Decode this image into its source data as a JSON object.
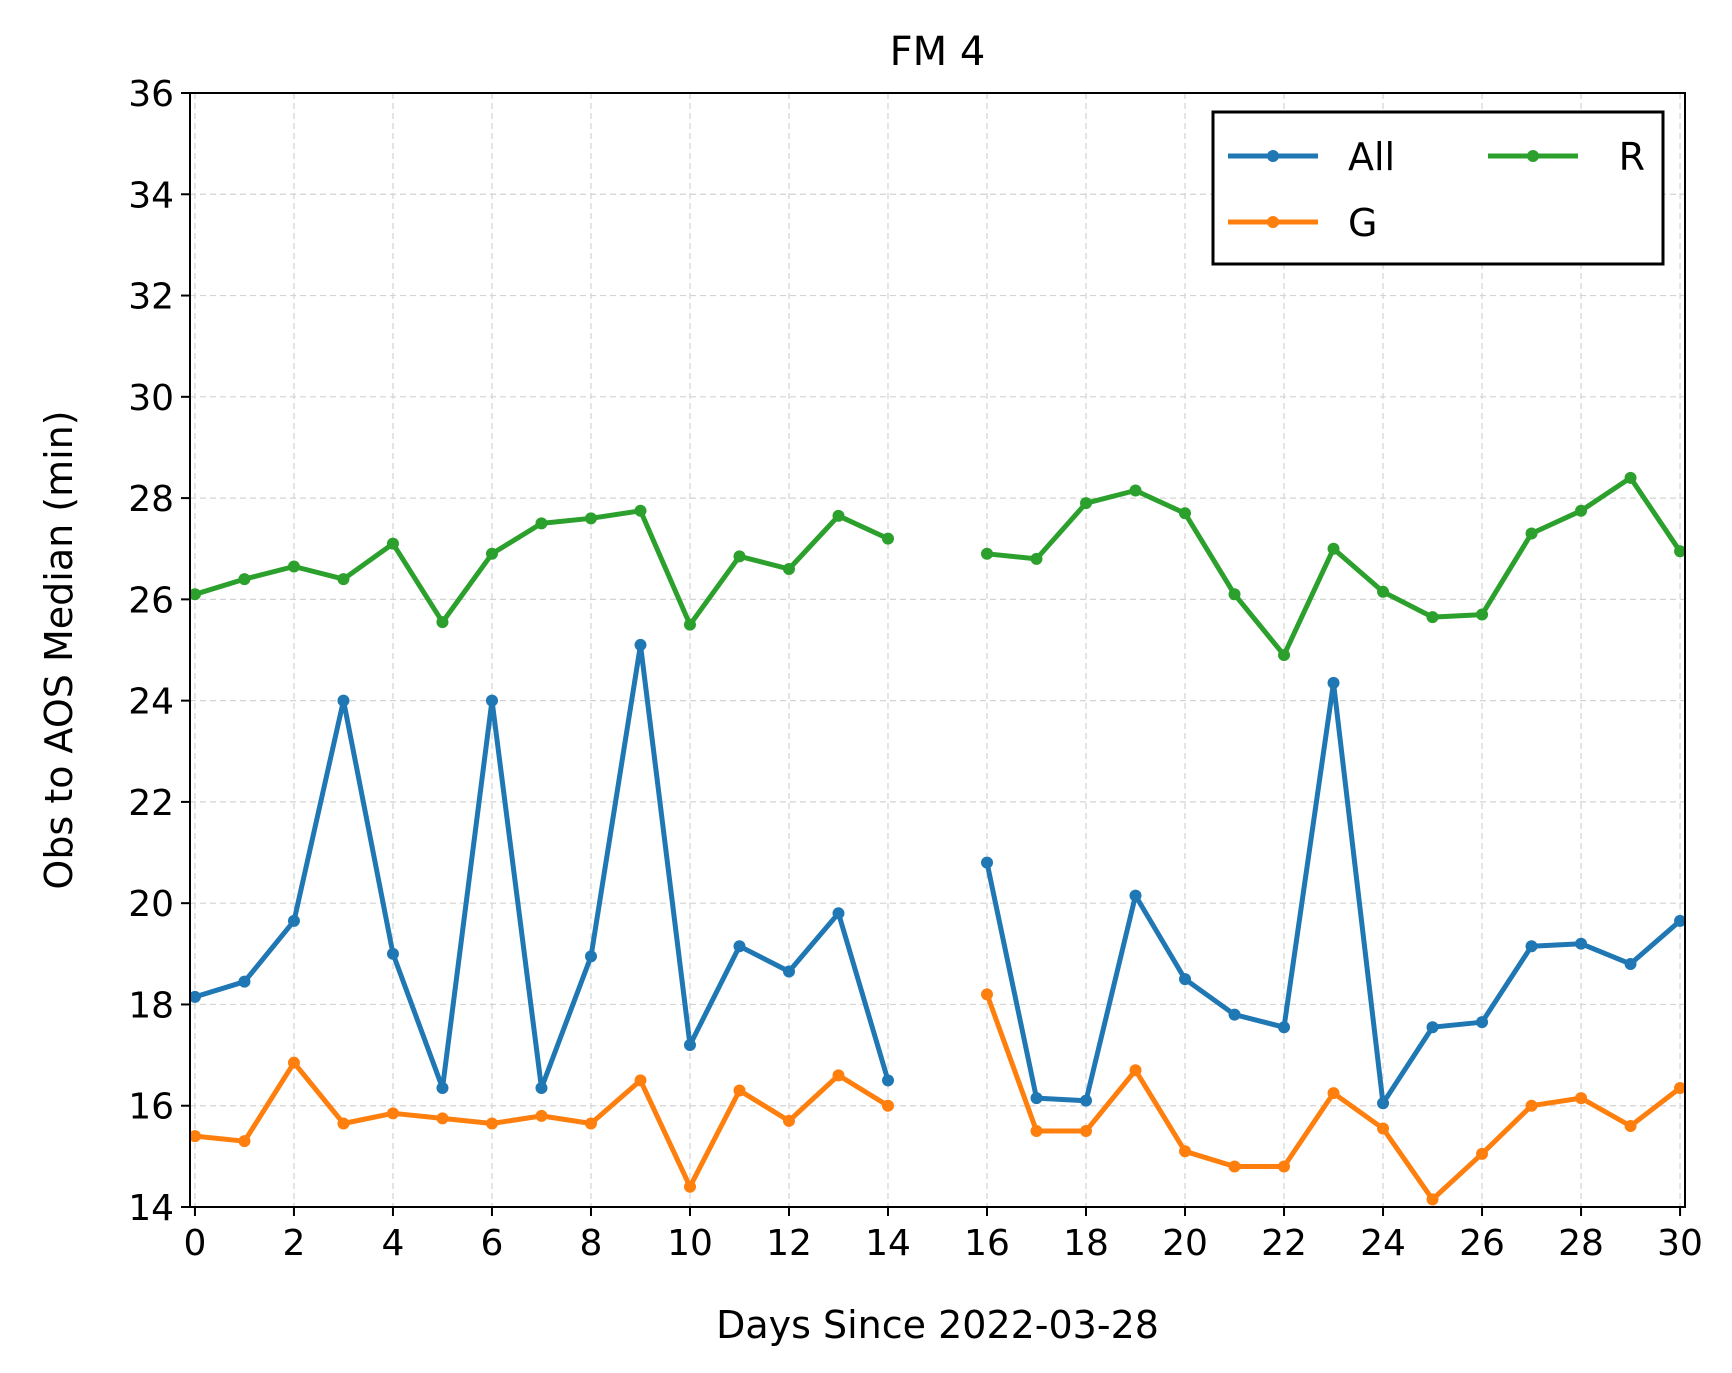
{
  "chart_data": {
    "type": "line",
    "title": "FM 4",
    "xlabel": "Days Since 2022-03-28",
    "ylabel": "Obs to AOS Median (min)",
    "xlim": [
      -0.1,
      30.1
    ],
    "ylim": [
      14,
      36
    ],
    "xticks": [
      0,
      2,
      4,
      6,
      8,
      10,
      12,
      14,
      16,
      18,
      20,
      22,
      24,
      26,
      28,
      30
    ],
    "yticks": [
      14,
      16,
      18,
      20,
      22,
      24,
      26,
      28,
      30,
      32,
      34,
      36
    ],
    "grid": true,
    "legend_position": "top-right",
    "x": [
      0,
      1,
      2,
      3,
      4,
      5,
      6,
      7,
      8,
      9,
      10,
      11,
      12,
      13,
      14,
      15,
      16,
      17,
      18,
      19,
      20,
      21,
      22,
      23,
      24,
      25,
      26,
      27,
      28,
      29,
      30
    ],
    "series": [
      {
        "name": "All",
        "color": "#1f77b4",
        "values": [
          18.15,
          18.45,
          19.65,
          24.0,
          19.0,
          16.35,
          24.0,
          16.35,
          18.95,
          25.1,
          17.2,
          19.15,
          18.65,
          19.8,
          16.5,
          null,
          20.8,
          16.15,
          16.1,
          20.15,
          18.5,
          17.8,
          17.55,
          24.35,
          16.05,
          17.55,
          17.65,
          19.15,
          19.2,
          18.8,
          19.65
        ]
      },
      {
        "name": "G",
        "color": "#ff7f0e",
        "values": [
          15.4,
          15.3,
          16.85,
          15.65,
          15.85,
          15.75,
          15.65,
          15.8,
          15.65,
          16.5,
          14.4,
          16.3,
          15.7,
          16.6,
          16.0,
          null,
          18.2,
          15.5,
          15.5,
          16.7,
          15.1,
          14.8,
          14.8,
          16.25,
          15.55,
          14.15,
          15.05,
          16.0,
          16.15,
          15.6,
          16.35
        ]
      },
      {
        "name": "R",
        "color": "#2ca02c",
        "values": [
          26.1,
          26.4,
          26.65,
          26.4,
          27.1,
          25.55,
          26.9,
          27.5,
          27.6,
          27.75,
          25.5,
          26.85,
          26.6,
          27.65,
          27.2,
          null,
          26.9,
          26.8,
          27.9,
          28.15,
          27.7,
          26.1,
          24.9,
          27.0,
          26.15,
          25.65,
          25.7,
          27.3,
          27.75,
          28.4,
          26.95
        ]
      }
    ]
  }
}
